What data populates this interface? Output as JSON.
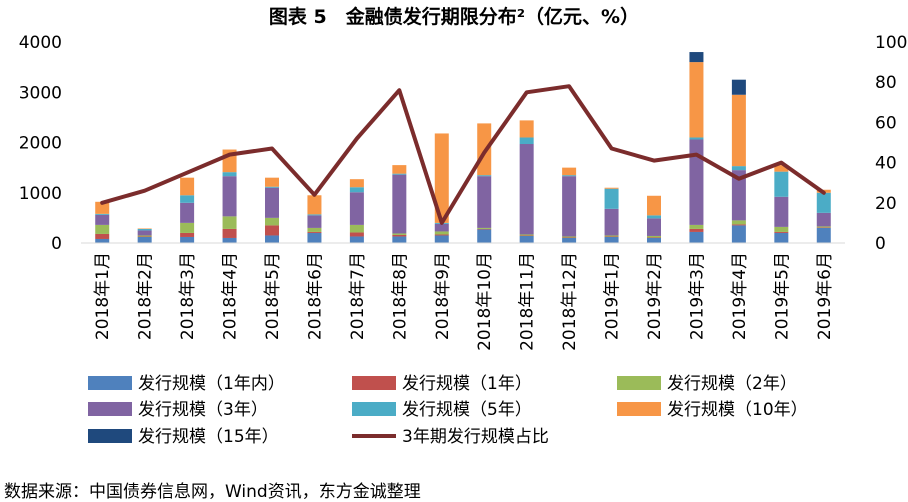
{
  "chart_data": {
    "type": "bar",
    "title": "图表 5　金融债发行期限分布²（亿元、%）",
    "categories": [
      "2018年1月",
      "2018年2月",
      "2018年3月",
      "2018年4月",
      "2018年5月",
      "2018年6月",
      "2018年7月",
      "2018年8月",
      "2018年9月",
      "2018年10月",
      "2018年11月",
      "2018年12月",
      "2019年1月",
      "2019年2月",
      "2019年3月",
      "2019年4月",
      "2019年5月",
      "2019年6月"
    ],
    "ylim": [
      0,
      4000
    ],
    "yticks": [
      "0",
      "1000",
      "2000",
      "3000",
      "4000"
    ],
    "y2lim": [
      0,
      100
    ],
    "y2ticks": [
      "0",
      "20",
      "40",
      "60",
      "80",
      "100"
    ],
    "grid": false,
    "legend_position": "bottom",
    "series": [
      {
        "name": "发行规模（1年内）",
        "color": "#4f81bd",
        "values": [
          80,
          120,
          120,
          100,
          150,
          200,
          130,
          130,
          150,
          270,
          140,
          100,
          120,
          100,
          220,
          350,
          200,
          300
        ]
      },
      {
        "name": "发行规模（1年）",
        "color": "#c0504d",
        "values": [
          100,
          10,
          80,
          180,
          200,
          20,
          80,
          30,
          20,
          10,
          10,
          10,
          10,
          10,
          60,
          20,
          20,
          10
        ]
      },
      {
        "name": "发行规模（2年）",
        "color": "#9bbb59",
        "values": [
          180,
          20,
          200,
          250,
          150,
          80,
          150,
          30,
          60,
          20,
          20,
          20,
          20,
          30,
          80,
          80,
          100,
          20
        ]
      },
      {
        "name": "发行规模（3年）",
        "color": "#8064a2",
        "values": [
          200,
          100,
          400,
          800,
          600,
          250,
          650,
          1170,
          150,
          1030,
          1800,
          1200,
          530,
          350,
          1700,
          1000,
          600,
          270
        ]
      },
      {
        "name": "发行规模（5年）",
        "color": "#4bacc6",
        "values": [
          20,
          30,
          150,
          80,
          20,
          20,
          100,
          20,
          20,
          20,
          130,
          20,
          400,
          60,
          40,
          80,
          500,
          400
        ]
      },
      {
        "name": "发行规模（10年）",
        "color": "#f79646",
        "values": [
          240,
          10,
          350,
          450,
          180,
          380,
          160,
          170,
          1780,
          1030,
          340,
          150,
          20,
          390,
          1500,
          1420,
          130,
          60
        ]
      },
      {
        "name": "发行规模（15年）",
        "color": "#1f497d",
        "values": [
          0,
          0,
          0,
          0,
          0,
          0,
          0,
          0,
          0,
          0,
          0,
          0,
          0,
          0,
          200,
          300,
          0,
          0
        ]
      }
    ],
    "line_series": {
      "name": "3年期发行规模占比",
      "color": "#7b2c2c",
      "axis": "right",
      "values": [
        20,
        26,
        35,
        44,
        47,
        24,
        52,
        76,
        10,
        45,
        75,
        78,
        47,
        41,
        44,
        32,
        40,
        25
      ]
    }
  },
  "source": "数据来源：中国债券信息网，Wind资讯，东方金诚整理"
}
